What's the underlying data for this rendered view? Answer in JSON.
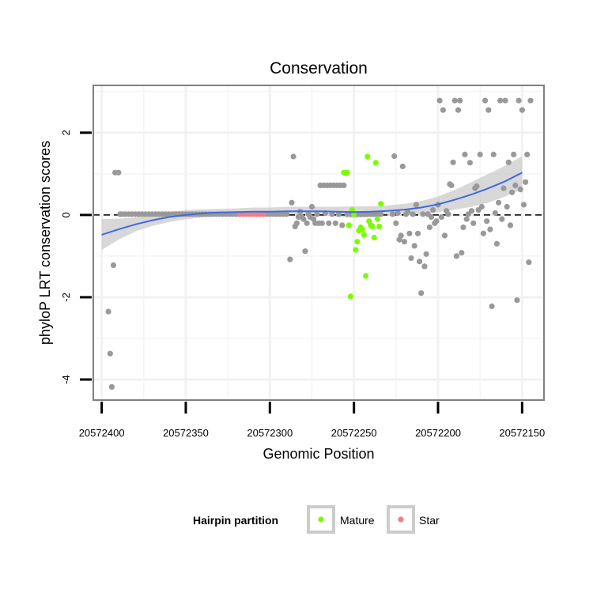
{
  "chart_data": {
    "type": "scatter",
    "title": "Conservation",
    "xlabel": "Genomic Position",
    "ylabel": "phyloP LRT conservation scores",
    "x_reversed": true,
    "xlim": [
      20572137,
      20572405
    ],
    "ylim": [
      -4.5,
      3.15
    ],
    "x_ticks": [
      20572400,
      20572350,
      20572300,
      20572250,
      20572200,
      20572150
    ],
    "y_ticks": [
      -4,
      -2,
      0,
      2
    ],
    "reference_line": {
      "y": 0,
      "style": "dashed"
    },
    "legend": {
      "title": "Hairpin partition",
      "position": "bottom",
      "entries": [
        {
          "label": "Mature",
          "color": "#7CFC00"
        },
        {
          "label": "Star",
          "color": "#F08080"
        }
      ]
    },
    "colors": {
      "other": "#999999",
      "mature": "#7CFC00",
      "star": "#F08080",
      "smooth": "#4169E1",
      "ribbon": "#C8C8C8",
      "panel": "#FFFFFF",
      "grid": "#F2F2F2",
      "border": "#7F7F7F"
    },
    "smooth": {
      "x": [
        20572400,
        20572390,
        20572380,
        20572370,
        20572360,
        20572350,
        20572340,
        20572330,
        20572320,
        20572310,
        20572300,
        20572290,
        20572280,
        20572270,
        20572260,
        20572250,
        20572240,
        20572230,
        20572220,
        20572210,
        20572200,
        20572190,
        20572180,
        20572170,
        20572160,
        20572150
      ],
      "y": [
        -0.48,
        -0.35,
        -0.23,
        -0.13,
        -0.05,
        0.0,
        0.04,
        0.06,
        0.07,
        0.08,
        0.08,
        0.09,
        0.09,
        0.09,
        0.08,
        0.07,
        0.08,
        0.1,
        0.13,
        0.18,
        0.26,
        0.37,
        0.5,
        0.65,
        0.82,
        1.03
      ],
      "lower": [
        -0.85,
        -0.6,
        -0.4,
        -0.27,
        -0.17,
        -0.1,
        -0.06,
        -0.03,
        -0.02,
        -0.02,
        -0.02,
        -0.02,
        -0.02,
        -0.02,
        -0.04,
        -0.07,
        -0.05,
        -0.03,
        -0.01,
        0.02,
        0.07,
        0.13,
        0.2,
        0.3,
        0.45,
        0.63
      ],
      "upper": [
        -0.1,
        -0.09,
        -0.06,
        0.01,
        0.07,
        0.12,
        0.14,
        0.15,
        0.16,
        0.18,
        0.18,
        0.2,
        0.2,
        0.2,
        0.2,
        0.21,
        0.21,
        0.23,
        0.27,
        0.34,
        0.45,
        0.61,
        0.8,
        1.0,
        1.2,
        1.43
      ]
    },
    "series": [
      {
        "name": "Other",
        "points": [
          [
            20572396,
            -2.35
          ],
          [
            20572395,
            -3.37
          ],
          [
            20572394,
            -4.18
          ],
          [
            20572393,
            -1.22
          ],
          [
            20572392,
            1.03
          ],
          [
            20572390,
            1.03
          ],
          [
            20572389,
            0.02
          ],
          [
            20572388,
            0.02
          ],
          [
            20572386,
            0.02
          ],
          [
            20572384,
            0.02
          ],
          [
            20572382,
            0.02
          ],
          [
            20572380,
            0.02
          ],
          [
            20572378,
            0.02
          ],
          [
            20572376,
            0.02
          ],
          [
            20572374,
            0.02
          ],
          [
            20572372,
            0.02
          ],
          [
            20572370,
            0.02
          ],
          [
            20572368,
            0.02
          ],
          [
            20572366,
            0.02
          ],
          [
            20572364,
            0.02
          ],
          [
            20572362,
            0.02
          ],
          [
            20572360,
            0.02
          ],
          [
            20572358,
            0.02
          ],
          [
            20572356,
            0.02
          ],
          [
            20572354,
            0.02
          ],
          [
            20572352,
            0.02
          ],
          [
            20572350,
            0.02
          ],
          [
            20572348,
            0.02
          ],
          [
            20572346,
            0.02
          ],
          [
            20572344,
            0.02
          ],
          [
            20572342,
            0.02
          ],
          [
            20572340,
            0.02
          ],
          [
            20572338,
            0.02
          ],
          [
            20572336,
            0.02
          ],
          [
            20572334,
            0.02
          ],
          [
            20572332,
            0.02
          ],
          [
            20572330,
            0.02
          ],
          [
            20572328,
            0.02
          ],
          [
            20572326,
            0.02
          ],
          [
            20572324,
            0.02
          ],
          [
            20572322,
            0.02
          ],
          [
            20572320,
            0.02
          ],
          [
            20572302,
            0.02
          ],
          [
            20572300,
            0.02
          ],
          [
            20572298,
            0.02
          ],
          [
            20572296,
            0.02
          ],
          [
            20572294,
            0.02
          ],
          [
            20572292,
            0.02
          ],
          [
            20572290,
            0.02
          ],
          [
            20572288,
            -1.08
          ],
          [
            20572287,
            0.3
          ],
          [
            20572286,
            1.42
          ],
          [
            20572285,
            -0.28
          ],
          [
            20572284,
            -0.2
          ],
          [
            20572283,
            -0.05
          ],
          [
            20572282,
            0.08
          ],
          [
            20572281,
            -0.05
          ],
          [
            20572280,
            -0.1
          ],
          [
            20572279,
            -0.88
          ],
          [
            20572278,
            -0.2
          ],
          [
            20572277,
            0.02
          ],
          [
            20572276,
            -0.05
          ],
          [
            20572275,
            0.2
          ],
          [
            20572274,
            -0.1
          ],
          [
            20572273,
            -0.2
          ],
          [
            20572272,
            0.02
          ],
          [
            20572271,
            -0.2
          ],
          [
            20572270,
            0.72
          ],
          [
            20572269,
            -0.2
          ],
          [
            20572268,
            0.72
          ],
          [
            20572267,
            0.05
          ],
          [
            20572266,
            0.72
          ],
          [
            20572265,
            -0.2
          ],
          [
            20572264,
            0.72
          ],
          [
            20572263,
            0.02
          ],
          [
            20572262,
            0.72
          ],
          [
            20572261,
            -0.2
          ],
          [
            20572260,
            0.72
          ],
          [
            20572259,
            0.02
          ],
          [
            20572258,
            0.72
          ],
          [
            20572257,
            -0.25
          ],
          [
            20572256,
            0.72
          ],
          [
            20572254,
            0.02
          ],
          [
            20572252,
            0.02
          ],
          [
            20572250,
            0.02
          ],
          [
            20572248,
            0.02
          ],
          [
            20572246,
            0.02
          ],
          [
            20572244,
            0.02
          ],
          [
            20572242,
            0.02
          ],
          [
            20572240,
            0.02
          ],
          [
            20572238,
            0.02
          ],
          [
            20572236,
            0.02
          ],
          [
            20572234,
            0.02
          ],
          [
            20572227,
            0.02
          ],
          [
            20572226,
            1.43
          ],
          [
            20572225,
            -0.2
          ],
          [
            20572224,
            0.05
          ],
          [
            20572223,
            -0.6
          ],
          [
            20572222,
            -0.5
          ],
          [
            20572221,
            1.18
          ],
          [
            20572220,
            -0.65
          ],
          [
            20572219,
            0.02
          ],
          [
            20572218,
            0.08
          ],
          [
            20572217,
            -0.45
          ],
          [
            20572216,
            -1.05
          ],
          [
            20572215,
            0.02
          ],
          [
            20572214,
            -0.75
          ],
          [
            20572213,
            0.25
          ],
          [
            20572212,
            -0.45
          ],
          [
            20572211,
            -1.13
          ],
          [
            20572210,
            -1.9
          ],
          [
            20572209,
            0.02
          ],
          [
            20572208,
            -1.25
          ],
          [
            20572207,
            -0.95
          ],
          [
            20572206,
            0.02
          ],
          [
            20572205,
            -0.3
          ],
          [
            20572204,
            -0.05
          ],
          [
            20572203,
            0.12
          ],
          [
            20572202,
            -0.2
          ],
          [
            20572201,
            -0.15
          ],
          [
            20572200,
            0.25
          ],
          [
            20572199,
            2.78
          ],
          [
            20572198,
            -0.05
          ],
          [
            20572197,
            2.55
          ],
          [
            20572196,
            -0.5
          ],
          [
            20572195,
            0.1
          ],
          [
            20572194,
            0.02
          ],
          [
            20572193,
            0.75
          ],
          [
            20572192,
            0.72
          ],
          [
            20572191,
            1.28
          ],
          [
            20572190,
            2.78
          ],
          [
            20572189,
            -1.0
          ],
          [
            20572188,
            2.55
          ],
          [
            20572187,
            2.78
          ],
          [
            20572186,
            -0.92
          ],
          [
            20572185,
            -0.3
          ],
          [
            20572184,
            1.47
          ],
          [
            20572183,
            -0.1
          ],
          [
            20572182,
            0.02
          ],
          [
            20572181,
            1.27
          ],
          [
            20572180,
            0.1
          ],
          [
            20572179,
            -0.2
          ],
          [
            20572178,
            0.65
          ],
          [
            20572177,
            0.7
          ],
          [
            20572176,
            0.12
          ],
          [
            20572175,
            1.47
          ],
          [
            20572174,
            0.2
          ],
          [
            20572173,
            -0.45
          ],
          [
            20572172,
            2.78
          ],
          [
            20572171,
            -0.15
          ],
          [
            20572170,
            2.55
          ],
          [
            20572169,
            -0.35
          ],
          [
            20572168,
            -2.22
          ],
          [
            20572167,
            1.47
          ],
          [
            20572166,
            0.05
          ],
          [
            20572165,
            -0.7
          ],
          [
            20572164,
            0.3
          ],
          [
            20572163,
            2.78
          ],
          [
            20572162,
            -0.1
          ],
          [
            20572161,
            0.65
          ],
          [
            20572160,
            2.78
          ],
          [
            20572159,
            0.2
          ],
          [
            20572158,
            1.28
          ],
          [
            20572157,
            -0.25
          ],
          [
            20572156,
            0.55
          ],
          [
            20572155,
            1.47
          ],
          [
            20572154,
            0.72
          ],
          [
            20572153,
            -2.07
          ],
          [
            20572152,
            2.78
          ],
          [
            20572151,
            0.62
          ],
          [
            20572150,
            2.55
          ],
          [
            20572149,
            0.25
          ],
          [
            20572148,
            0.8
          ],
          [
            20572147,
            1.47
          ],
          [
            20572146,
            -1.15
          ],
          [
            20572145,
            2.78
          ]
        ]
      },
      {
        "name": "Mature",
        "points": [
          [
            20572256,
            1.03
          ],
          [
            20572255,
            1.03
          ],
          [
            20572254,
            1.03
          ],
          [
            20572253,
            -0.25
          ],
          [
            20572252,
            -1.98
          ],
          [
            20572251,
            0.12
          ],
          [
            20572250,
            0.02
          ],
          [
            20572249,
            -0.85
          ],
          [
            20572248,
            -0.65
          ],
          [
            20572247,
            -0.38
          ],
          [
            20572246,
            -0.3
          ],
          [
            20572245,
            -0.35
          ],
          [
            20572244,
            -0.48
          ],
          [
            20572243,
            -1.48
          ],
          [
            20572242,
            1.42
          ],
          [
            20572241,
            -0.15
          ],
          [
            20572240,
            -0.25
          ],
          [
            20572239,
            -0.28
          ],
          [
            20572238,
            -0.55
          ],
          [
            20572237,
            1.27
          ],
          [
            20572236,
            -0.1
          ],
          [
            20572235,
            -0.28
          ],
          [
            20572234,
            0.27
          ]
        ]
      },
      {
        "name": "Star",
        "points": [
          [
            20572318,
            0.02
          ],
          [
            20572316,
            0.02
          ],
          [
            20572314,
            0.02
          ],
          [
            20572312,
            0.02
          ],
          [
            20572310,
            0.02
          ],
          [
            20572308,
            0.02
          ],
          [
            20572306,
            0.02
          ],
          [
            20572304,
            0.02
          ]
        ]
      }
    ]
  }
}
